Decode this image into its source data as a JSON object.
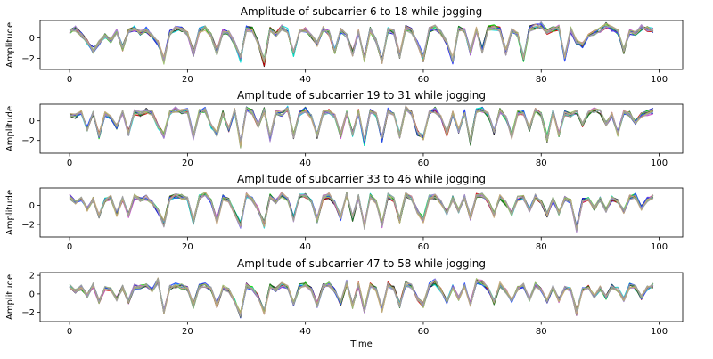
{
  "chart_data": [
    {
      "type": "line",
      "title": "Amplitude of subcarrier 6 to 18 while jogging",
      "ylabel": "Amplitude",
      "xlabel": "",
      "xlim": [
        -5,
        104
      ],
      "ylim": [
        -3.1,
        1.7
      ],
      "xticks": [
        0,
        20,
        40,
        60,
        80,
        100
      ],
      "yticks": [
        -2,
        0
      ],
      "seed": 6,
      "base": [
        0.6,
        0.9,
        0.3,
        -0.4,
        -1.2,
        -0.5,
        0.2,
        -0.3,
        0.6,
        -1.0,
        0.7,
        0.9,
        0.5,
        0.8,
        0.2,
        -0.5,
        -2.2,
        0.5,
        0.9,
        0.8,
        0.4,
        -1.5,
        0.7,
        0.9,
        0.3,
        -1.4,
        0.6,
        0.5,
        -0.5,
        -2.2,
        0.9,
        0.8,
        -0.5,
        -2.4,
        0.8,
        0.3,
        1.0,
        0.7,
        -1.6,
        0.6,
        0.8,
        0.2,
        -0.6,
        0.9,
        0.5,
        -1.3,
        0.7,
        0.2,
        -1.5,
        0.6,
        -2.1,
        0.8,
        -0.3,
        -2.2,
        0.8,
        0.6,
        -1.8,
        1.0,
        0.7,
        -0.5,
        -2.0,
        0.8,
        1.0,
        0.5,
        -0.5,
        -2.2,
        0.9,
        0.7,
        -1.4,
        0.8,
        -1.2,
        0.9,
        1.0,
        0.8,
        -1.4,
        0.7,
        0.3,
        -2.1,
        0.9,
        1.1,
        1.3,
        0.6,
        0.9,
        1.0,
        -2.0,
        0.8,
        -0.4,
        -0.7,
        0.2,
        0.5,
        0.8,
        1.2,
        0.9,
        0.6,
        -1.3,
        0.6,
        0.5,
        1.0,
        0.9,
        0.8
      ],
      "series": [
        {
          "color": "#000000"
        },
        {
          "color": "#0000cc"
        },
        {
          "color": "#cc0000"
        },
        {
          "color": "#00dd00"
        },
        {
          "color": "#00dddd"
        },
        {
          "color": "#cc44cc"
        },
        {
          "color": "#1a6a1a"
        },
        {
          "color": "#2244ff"
        },
        {
          "color": "#aa88cc"
        },
        {
          "color": "#99bb66"
        },
        {
          "color": "#c8a878"
        },
        {
          "color": "#9e9e9e"
        }
      ]
    },
    {
      "type": "line",
      "title": "Amplitude of subcarrier 19 to 31 while jogging",
      "ylabel": "Amplitude",
      "xlabel": "",
      "xlim": [
        -5,
        104
      ],
      "ylim": [
        -3.3,
        1.7
      ],
      "xticks": [
        0,
        20,
        40,
        60,
        80,
        100
      ],
      "yticks": [
        -2,
        0
      ],
      "seed": 19,
      "base": [
        0.6,
        0.5,
        0.8,
        -0.8,
        0.9,
        -1.5,
        0.7,
        0.4,
        -0.6,
        0.8,
        -1.2,
        0.9,
        0.7,
        1.0,
        0.8,
        -0.6,
        -1.5,
        0.8,
        1.2,
        0.9,
        1.0,
        -1.6,
        0.9,
        1.1,
        -0.5,
        -1.4,
        0.8,
        -0.9,
        1.0,
        -2.4,
        1.2,
        0.9,
        -0.5,
        1.1,
        -1.8,
        0.9,
        0.7,
        1.2,
        -1.5,
        0.8,
        1.1,
        0.4,
        -1.6,
        0.8,
        1.0,
        0.5,
        -1.5,
        0.8,
        -1.4,
        0.9,
        -2.2,
        1.0,
        0.6,
        -1.9,
        1.1,
        0.7,
        -1.5,
        1.2,
        0.8,
        -1.2,
        -1.6,
        0.9,
        1.1,
        0.4,
        -1.3,
        0.8,
        -1.0,
        0.9,
        -2.2,
        1.0,
        1.2,
        0.6,
        -1.1,
        1.0,
        0.3,
        -1.6,
        0.8,
        0.9,
        -0.8,
        1.0,
        0.6,
        -1.8,
        0.9,
        -1.3,
        0.8,
        0.6,
        0.9,
        -0.4,
        0.8,
        1.1,
        0.9,
        -0.3,
        0.6,
        -1.3,
        0.9,
        0.7,
        -0.2,
        0.6,
        0.8,
        1.0
      ],
      "series": [
        {
          "color": "#000000"
        },
        {
          "color": "#0000cc"
        },
        {
          "color": "#cc0000"
        },
        {
          "color": "#00dd00"
        },
        {
          "color": "#00dddd"
        },
        {
          "color": "#cc44cc"
        },
        {
          "color": "#1a6a1a"
        },
        {
          "color": "#2244ff"
        },
        {
          "color": "#aa88cc"
        },
        {
          "color": "#99bb66"
        },
        {
          "color": "#c8a878"
        },
        {
          "color": "#9e9e9e"
        }
      ]
    },
    {
      "type": "line",
      "title": "Amplitude of subcarrier 33 to 46 while jogging",
      "ylabel": "Amplitude",
      "xlabel": "",
      "xlim": [
        -5,
        104
      ],
      "ylim": [
        -3.3,
        1.8
      ],
      "xticks": [
        0,
        20,
        40,
        60,
        80,
        100
      ],
      "yticks": [
        -2,
        0
      ],
      "seed": 33,
      "base": [
        0.9,
        0.3,
        0.7,
        -0.4,
        0.6,
        -1.2,
        0.5,
        0.8,
        -0.9,
        0.7,
        -1.0,
        0.9,
        0.6,
        0.8,
        0.3,
        -0.6,
        -1.9,
        0.7,
        1.0,
        0.9,
        0.6,
        -1.7,
        0.8,
        1.1,
        0.4,
        -1.7,
        0.8,
        0.5,
        -0.8,
        -2.1,
        1.0,
        0.6,
        -0.4,
        -2.0,
        1.0,
        0.4,
        1.1,
        0.6,
        -1.4,
        0.9,
        1.0,
        0.5,
        -1.5,
        0.8,
        1.0,
        0.2,
        -1.3,
        1.1,
        -1.4,
        0.9,
        -2.2,
        1.0,
        0.4,
        -2.0,
        1.0,
        0.6,
        -1.5,
        1.1,
        0.8,
        -0.6,
        -1.5,
        0.8,
        0.9,
        0.3,
        -0.8,
        0.7,
        -0.6,
        0.9,
        -1.3,
        1.0,
        1.1,
        0.4,
        -1.0,
        0.9,
        0.2,
        -0.9,
        0.7,
        0.8,
        -0.5,
        0.9,
        0.4,
        -1.0,
        0.6,
        -0.8,
        0.7,
        0.4,
        -2.4,
        0.5,
        0.7,
        -0.3,
        0.6,
        -0.5,
        0.7,
        0.4,
        -0.6,
        0.8,
        1.0,
        -0.3,
        0.6,
        0.8
      ],
      "series": [
        {
          "color": "#000000"
        },
        {
          "color": "#0000cc"
        },
        {
          "color": "#cc0000"
        },
        {
          "color": "#00dd00"
        },
        {
          "color": "#00dddd"
        },
        {
          "color": "#cc44cc"
        },
        {
          "color": "#1a6a1a"
        },
        {
          "color": "#2244ff"
        },
        {
          "color": "#aa88cc"
        },
        {
          "color": "#99bb66"
        },
        {
          "color": "#c8a878"
        },
        {
          "color": "#9e9e9e"
        }
      ]
    },
    {
      "type": "line",
      "title": "Amplitude of subcarrier 47 to 58 while jogging",
      "ylabel": "Amplitude",
      "xlabel": "Time",
      "xlim": [
        -5,
        104
      ],
      "ylim": [
        -3.0,
        2.3
      ],
      "xticks": [
        0,
        20,
        40,
        60,
        80,
        100
      ],
      "yticks": [
        -2,
        0,
        2
      ],
      "seed": 47,
      "base": [
        0.9,
        0.3,
        0.7,
        -0.2,
        0.9,
        -0.8,
        0.6,
        0.5,
        -0.6,
        0.7,
        -0.8,
        0.8,
        0.7,
        0.9,
        0.4,
        1.4,
        -2.0,
        0.7,
        0.9,
        0.8,
        0.6,
        -1.3,
        0.8,
        1.0,
        0.5,
        -1.2,
        0.7,
        0.4,
        -0.7,
        -2.2,
        0.9,
        0.6,
        -0.3,
        -2.0,
        0.9,
        0.4,
        1.0,
        0.7,
        -1.0,
        0.8,
        1.0,
        0.5,
        -1.2,
        0.8,
        1.0,
        0.3,
        -1.0,
        1.2,
        -1.3,
        1.0,
        -1.8,
        0.9,
        0.5,
        -1.7,
        1.0,
        0.6,
        -1.2,
        1.1,
        0.8,
        -0.5,
        -1.2,
        0.9,
        1.3,
        0.4,
        -0.8,
        0.8,
        -0.5,
        0.9,
        -1.1,
        1.4,
        1.2,
        0.5,
        -0.9,
        1.0,
        0.3,
        -0.8,
        0.6,
        0.9,
        -0.6,
        1.0,
        0.5,
        -0.8,
        0.7,
        -0.7,
        0.6,
        0.4,
        -2.0,
        0.5,
        0.7,
        -0.3,
        0.6,
        -0.4,
        0.8,
        0.5,
        -0.6,
        0.9,
        0.7,
        -0.4,
        0.6,
        0.9
      ],
      "series": [
        {
          "color": "#000000"
        },
        {
          "color": "#0000cc"
        },
        {
          "color": "#cc0000"
        },
        {
          "color": "#00dd00"
        },
        {
          "color": "#00dddd"
        },
        {
          "color": "#cc44cc"
        },
        {
          "color": "#1a6a1a"
        },
        {
          "color": "#2244ff"
        },
        {
          "color": "#aa88cc"
        },
        {
          "color": "#99bb66"
        },
        {
          "color": "#c8a878"
        },
        {
          "color": "#9e9e9e"
        }
      ]
    }
  ]
}
